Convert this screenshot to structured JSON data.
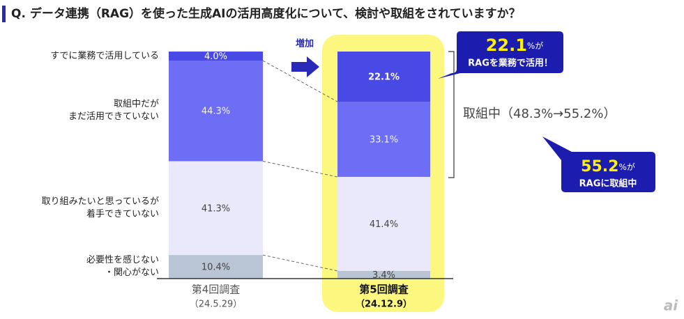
{
  "chart_data": {
    "type": "stacked-bar",
    "title": "Q. データ連携（RAG）を使った生成AIの活用高度化について、検討や取組をされていますか？",
    "categories": [
      "第4回調査",
      "第5回調査"
    ],
    "category_dates": [
      "（24.5.29）",
      "（24.12.9）"
    ],
    "ylim": [
      0,
      100
    ],
    "series": [
      {
        "name": "必要性を感じない\n・関心がない",
        "color": "#b9c4d4",
        "label_color": "#444444",
        "values": [
          10.4,
          3.4
        ],
        "value_labels": [
          "10.4%",
          "3.4%"
        ]
      },
      {
        "name": "取り組みたいと思っているが\n着手できていない",
        "color": "#e9e9fb",
        "label_color": "#444444",
        "values": [
          41.3,
          41.4
        ],
        "value_labels": [
          "41.3%",
          "41.4%"
        ]
      },
      {
        "name": "取組中だが\nまだ活用できていない",
        "color": "#6d6df6",
        "label_color": "#f4f4ff",
        "values": [
          44.3,
          33.1
        ],
        "value_labels": [
          "44.3%",
          "33.1%"
        ]
      },
      {
        "name": "すでに業務で活用している",
        "color": "#4949e6",
        "label_color": "#ffffff",
        "values": [
          4.0,
          22.1
        ],
        "value_labels": [
          "4.0%",
          "22.1%"
        ]
      }
    ],
    "annotations": {
      "increase": "増加",
      "callout1_number": "22.1",
      "callout1_unit": "%が",
      "callout1_text": "RAGを業務で活用！",
      "bracket_text": "取組中（48.3%→55.2%）",
      "callout2_number": "55.2",
      "callout2_unit": "%が",
      "callout2_text": "RAGに取組中",
      "logo": "ai"
    }
  }
}
